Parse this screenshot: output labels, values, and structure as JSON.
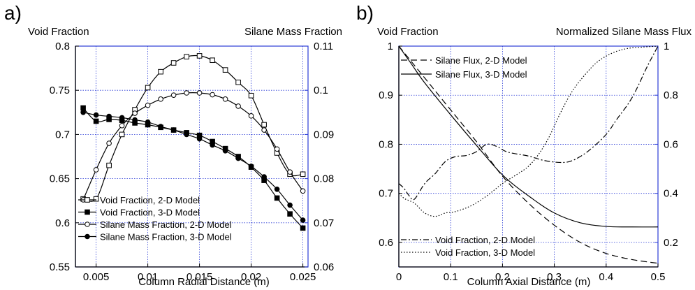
{
  "chart_data": [
    {
      "panel": "a)",
      "type": "line",
      "xlabel": "Column Radial Distance  (m)",
      "ylabel": "Void Fraction",
      "y2label": "Silane Mass Fraction",
      "xlim": [
        0.003,
        0.0255
      ],
      "ylim": [
        0.55,
        0.8
      ],
      "y2lim": [
        0.06,
        0.11
      ],
      "xticks": [
        0.005,
        0.01,
        0.015,
        0.02,
        0.025
      ],
      "xtick_labels": [
        "0.005",
        "0.01",
        "0.015",
        "0.02",
        "0.025"
      ],
      "yticks": [
        0.55,
        0.6,
        0.65,
        0.7,
        0.75,
        0.8
      ],
      "ytick_labels": [
        "0.55",
        "0.6",
        "0.65",
        "0.7",
        "0.75",
        "0.8"
      ],
      "y2ticks": [
        0.06,
        0.07,
        0.08,
        0.09,
        0.1,
        0.11
      ],
      "y2tick_labels": [
        "0.06",
        "0.07",
        "0.08",
        "0.09",
        "0.1",
        "0.11"
      ],
      "grid": true,
      "legend_position": "bottom-left",
      "series": [
        {
          "name": "Void Fraction, 2-D Model",
          "axis": "left",
          "marker": "open-square",
          "line": "solid",
          "x": [
            0.00375,
            0.005,
            0.00625,
            0.0075,
            0.00875,
            0.01,
            0.01125,
            0.0125,
            0.01375,
            0.015,
            0.01625,
            0.0175,
            0.01875,
            0.02,
            0.02125,
            0.0225,
            0.02375,
            0.025
          ],
          "y": [
            0.627,
            0.627,
            0.665,
            0.7,
            0.728,
            0.753,
            0.771,
            0.781,
            0.788,
            0.789,
            0.784,
            0.773,
            0.759,
            0.744,
            0.711,
            0.679,
            0.655,
            0.655
          ]
        },
        {
          "name": "Void Fraction, 3-D Model",
          "axis": "left",
          "marker": "filled-square",
          "line": "solid",
          "x": [
            0.00375,
            0.005,
            0.00625,
            0.0075,
            0.00875,
            0.01,
            0.01125,
            0.0125,
            0.01375,
            0.015,
            0.01625,
            0.0175,
            0.01875,
            0.02,
            0.02125,
            0.0225,
            0.02375,
            0.025
          ],
          "y": [
            0.73,
            0.715,
            0.717,
            0.716,
            0.713,
            0.711,
            0.708,
            0.705,
            0.702,
            0.699,
            0.692,
            0.684,
            0.675,
            0.663,
            0.648,
            0.628,
            0.61,
            0.594
          ]
        },
        {
          "name": "Silane Mass Fraction, 2-D Model",
          "axis": "right",
          "marker": "open-circle",
          "line": "solid",
          "x": [
            0.00375,
            0.005,
            0.00625,
            0.0075,
            0.00875,
            0.01,
            0.01125,
            0.0125,
            0.01375,
            0.015,
            0.01625,
            0.0175,
            0.01875,
            0.02,
            0.02125,
            0.0225,
            0.02375,
            0.025
          ],
          "y": [
            0.0752,
            0.082,
            0.088,
            0.092,
            0.0948,
            0.0966,
            0.098,
            0.0989,
            0.0994,
            0.0994,
            0.099,
            0.098,
            0.0964,
            0.0942,
            0.091,
            0.0867,
            0.0815,
            0.0772
          ]
        },
        {
          "name": "Silane Mass Fraction, 3-D Model",
          "axis": "right",
          "marker": "filled-circle",
          "line": "solid",
          "x": [
            0.00375,
            0.005,
            0.00625,
            0.0075,
            0.00875,
            0.01,
            0.01125,
            0.0125,
            0.01375,
            0.015,
            0.01625,
            0.0175,
            0.01875,
            0.02,
            0.02125,
            0.0225,
            0.02375,
            0.025
          ],
          "y": [
            0.095,
            0.0944,
            0.0941,
            0.0938,
            0.0933,
            0.0928,
            0.0918,
            0.091,
            0.09,
            0.089,
            0.0876,
            0.0863,
            0.0846,
            0.0828,
            0.0804,
            0.0776,
            0.074,
            0.0706
          ]
        }
      ]
    },
    {
      "panel": "b)",
      "type": "line",
      "xlabel": "Column Axial Distance  (m)",
      "ylabel": "Void Fraction",
      "y2label": "Normalized Silane Mass Flux",
      "xlim": [
        0,
        0.5
      ],
      "ylim": [
        0.55,
        1.0
      ],
      "y2lim": [
        0.1,
        1.0
      ],
      "xticks": [
        0,
        0.1,
        0.2,
        0.3,
        0.4,
        0.5
      ],
      "xtick_labels": [
        "0",
        "0.1",
        "0.2",
        "0.3",
        "0.4",
        "0.5"
      ],
      "yticks": [
        0.6,
        0.7,
        0.8,
        0.9,
        1.0
      ],
      "ytick_labels": [
        "0.6",
        "0.7",
        "0.8",
        "0.9",
        "1"
      ],
      "y2ticks": [
        0.2,
        0.4,
        0.6,
        0.8,
        1.0
      ],
      "y2tick_labels": [
        "0.2",
        "0.4",
        "0.6",
        "0.8",
        "1"
      ],
      "grid": true,
      "legend_position": "top-left and bottom-left",
      "series": [
        {
          "name": "Silane Flux, 2-D Model",
          "axis": "right",
          "line": "dashed",
          "x": [
            0,
            0.025,
            0.05,
            0.1,
            0.15,
            0.2,
            0.25,
            0.3,
            0.35,
            0.4,
            0.45,
            0.5
          ],
          "y": [
            1.0,
            0.935,
            0.87,
            0.74,
            0.61,
            0.47,
            0.36,
            0.27,
            0.2,
            0.155,
            0.13,
            0.115
          ]
        },
        {
          "name": "Silane Flux, 3-D Model",
          "axis": "right",
          "line": "solid",
          "x": [
            0,
            0.025,
            0.05,
            0.1,
            0.15,
            0.2,
            0.25,
            0.3,
            0.35,
            0.4,
            0.45,
            0.5
          ],
          "y": [
            1.0,
            0.925,
            0.85,
            0.72,
            0.595,
            0.475,
            0.39,
            0.32,
            0.28,
            0.265,
            0.263,
            0.263
          ]
        },
        {
          "name": "Void Fraction, 2-D Model",
          "axis": "left",
          "line": "dash-dot",
          "x": [
            0,
            0.01,
            0.02,
            0.03,
            0.05,
            0.07,
            0.09,
            0.11,
            0.13,
            0.15,
            0.17,
            0.19,
            0.21,
            0.25,
            0.28,
            0.31,
            0.33,
            0.35,
            0.37,
            0.4,
            0.42,
            0.45,
            0.48,
            0.5
          ],
          "y": [
            0.72,
            0.71,
            0.695,
            0.688,
            0.72,
            0.74,
            0.765,
            0.775,
            0.777,
            0.785,
            0.8,
            0.795,
            0.784,
            0.776,
            0.767,
            0.763,
            0.765,
            0.775,
            0.79,
            0.82,
            0.85,
            0.895,
            0.96,
            1.0
          ]
        },
        {
          "name": "Void Fraction, 3-D Model",
          "axis": "left",
          "line": "dotted",
          "x": [
            0,
            0.01,
            0.02,
            0.03,
            0.05,
            0.07,
            0.09,
            0.11,
            0.14,
            0.17,
            0.2,
            0.23,
            0.25,
            0.27,
            0.29,
            0.31,
            0.33,
            0.35,
            0.38,
            0.41,
            0.44,
            0.47,
            0.5
          ],
          "y": [
            0.7,
            0.69,
            0.685,
            0.68,
            0.66,
            0.653,
            0.66,
            0.663,
            0.675,
            0.695,
            0.72,
            0.74,
            0.755,
            0.78,
            0.815,
            0.86,
            0.9,
            0.93,
            0.965,
            0.985,
            0.995,
            0.998,
            1.0
          ]
        }
      ]
    }
  ]
}
